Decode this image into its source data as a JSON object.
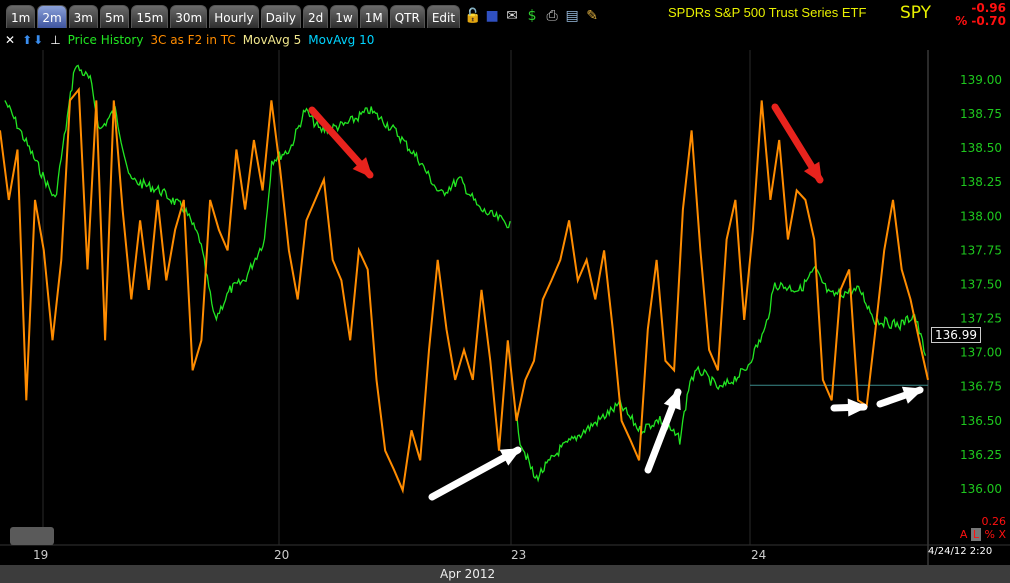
{
  "toolbar": {
    "tabs": [
      "1m",
      "2m",
      "3m",
      "5m",
      "15m",
      "30m",
      "Hourly",
      "Daily",
      "2d",
      "1w",
      "1M",
      "QTR",
      "Edit"
    ],
    "active_tab": "2m",
    "icons": [
      "lock-icon",
      "save-icon",
      "email-icon",
      "dollar-icon",
      "print-icon",
      "calendar-icon",
      "pencil-icon"
    ]
  },
  "header": {
    "title": "SPDRs S&P 500 Trust Series ETF",
    "symbol": "SPY",
    "change": "-0.96",
    "pct_change": "% -0.70"
  },
  "legend": {
    "price": "Price History",
    "indicator": "3C as F2 in TC",
    "ma5": "MovAvg 5",
    "ma10": "MovAvg 10"
  },
  "colors": {
    "price": "#22e622",
    "indicator": "#ff8c00",
    "ma5": "#f0e68c",
    "ma10": "#00d4ff",
    "down_arrow": "#e8231d",
    "up_arrow": "#ffffff"
  },
  "footer": {
    "month": "Apr 2012",
    "datetime": "4/24/12 2:20",
    "last_price": "136.99",
    "small_value": "0.26",
    "small_controls": [
      "A",
      "L",
      "%",
      "X"
    ]
  },
  "chart_data": {
    "type": "line",
    "ylim": [
      135.8,
      139.2
    ],
    "yticks": [
      "139.00",
      "138.75",
      "138.50",
      "138.25",
      "138.00",
      "137.75",
      "137.50",
      "137.25",
      "137.00",
      "136.75",
      "136.50",
      "136.25",
      "136.00"
    ],
    "xticks": [
      "19",
      "20",
      "23",
      "24"
    ],
    "grid": false,
    "series": [
      {
        "name": "Price History",
        "points": [
          [
            "04-18 14:57",
            138.85
          ],
          [
            "04-19 09:50",
            138.12
          ],
          [
            "04-19 10:23",
            139.11
          ],
          [
            "04-19 10:48",
            139.0
          ],
          [
            "04-19 11:04",
            138.63
          ],
          [
            "04-19 11:29",
            138.78
          ],
          [
            "04-19 11:54",
            138.27
          ],
          [
            "04-19 12:43",
            138.19
          ],
          [
            "04-19 13:24",
            138.05
          ],
          [
            "04-19 13:49",
            137.83
          ],
          [
            "04-19 14:14",
            137.24
          ],
          [
            "04-19 14:39",
            137.46
          ],
          [
            "04-19 15:03",
            137.53
          ],
          [
            "04-19 15:36",
            137.83
          ],
          [
            "04-19 15:48",
            138.41
          ],
          [
            "04-20 09:48",
            138.49
          ],
          [
            "04-20 10:13",
            138.78
          ],
          [
            "04-20 10:38",
            138.63
          ],
          [
            "04-20 11:19",
            138.67
          ],
          [
            "04-20 12:00",
            138.78
          ],
          [
            "04-20 12:41",
            138.63
          ],
          [
            "04-20 13:22",
            138.41
          ],
          [
            "04-20 13:56",
            138.16
          ],
          [
            "04-20 14:29",
            138.27
          ],
          [
            "04-20 15:02",
            138.05
          ],
          [
            "04-20 15:52",
            137.94
          ],
          [
            "04-23 09:37",
            136.58
          ],
          [
            "04-23 09:45",
            136.36
          ],
          [
            "04-23 10:10",
            136.07
          ],
          [
            "04-23 10:51",
            136.29
          ],
          [
            "04-23 11:57",
            136.51
          ],
          [
            "04-23 12:30",
            136.62
          ],
          [
            "04-23 13:03",
            136.43
          ],
          [
            "04-23 13:36",
            136.51
          ],
          [
            "04-23 14:09",
            136.36
          ],
          [
            "04-23 14:26",
            136.8
          ],
          [
            "04-23 14:42",
            136.87
          ],
          [
            "04-23 15:15",
            136.73
          ],
          [
            "04-23 15:57",
            136.87
          ],
          [
            "04-24 09:55",
            137.17
          ],
          [
            "04-24 10:11",
            137.5
          ],
          [
            "04-24 10:53",
            137.46
          ],
          [
            "04-24 11:17",
            137.61
          ],
          [
            "04-24 11:42",
            137.42
          ],
          [
            "04-24 12:32",
            137.46
          ],
          [
            "04-24 12:56",
            137.24
          ],
          [
            "04-24 13:38",
            137.2
          ],
          [
            "04-24 14:02",
            137.28
          ],
          [
            "04-24 14:20",
            136.99
          ]
        ]
      },
      {
        "name": "3C as F2 in TC",
        "values": [
          138.63,
          138.12,
          138.49,
          136.65,
          138.12,
          137.75,
          137.09,
          137.68,
          138.85,
          138.93,
          137.61,
          138.85,
          137.09,
          138.85,
          138.05,
          137.39,
          137.97,
          137.46,
          138.12,
          137.53,
          137.9,
          138.12,
          136.87,
          137.09,
          138.12,
          137.9,
          137.75,
          138.49,
          138.05,
          138.56,
          138.19,
          138.85,
          138.34,
          137.75,
          137.39,
          137.97,
          138.12,
          138.27,
          137.68,
          137.53,
          137.09,
          137.75,
          137.61,
          136.8,
          136.28,
          136.14,
          135.99,
          136.43,
          136.21,
          137.02,
          137.68,
          137.17,
          136.8,
          137.02,
          136.8,
          137.46,
          136.94,
          136.28,
          137.09,
          136.5,
          136.8,
          136.94,
          137.39,
          137.53,
          137.68,
          137.97,
          137.53,
          137.68,
          137.39,
          137.75,
          137.17,
          136.5,
          136.36,
          136.21,
          137.17,
          137.68,
          136.94,
          136.87,
          138.05,
          138.63,
          137.75,
          137.02,
          136.87,
          137.83,
          138.12,
          137.24,
          137.9,
          138.85,
          138.12,
          138.56,
          137.83,
          138.19,
          138.12,
          137.83,
          136.8,
          136.65,
          137.46,
          137.61,
          136.65,
          136.61,
          137.17,
          137.75,
          138.12,
          137.61,
          137.39,
          137.09,
          136.8
        ]
      }
    ],
    "reference_line": 136.76
  }
}
